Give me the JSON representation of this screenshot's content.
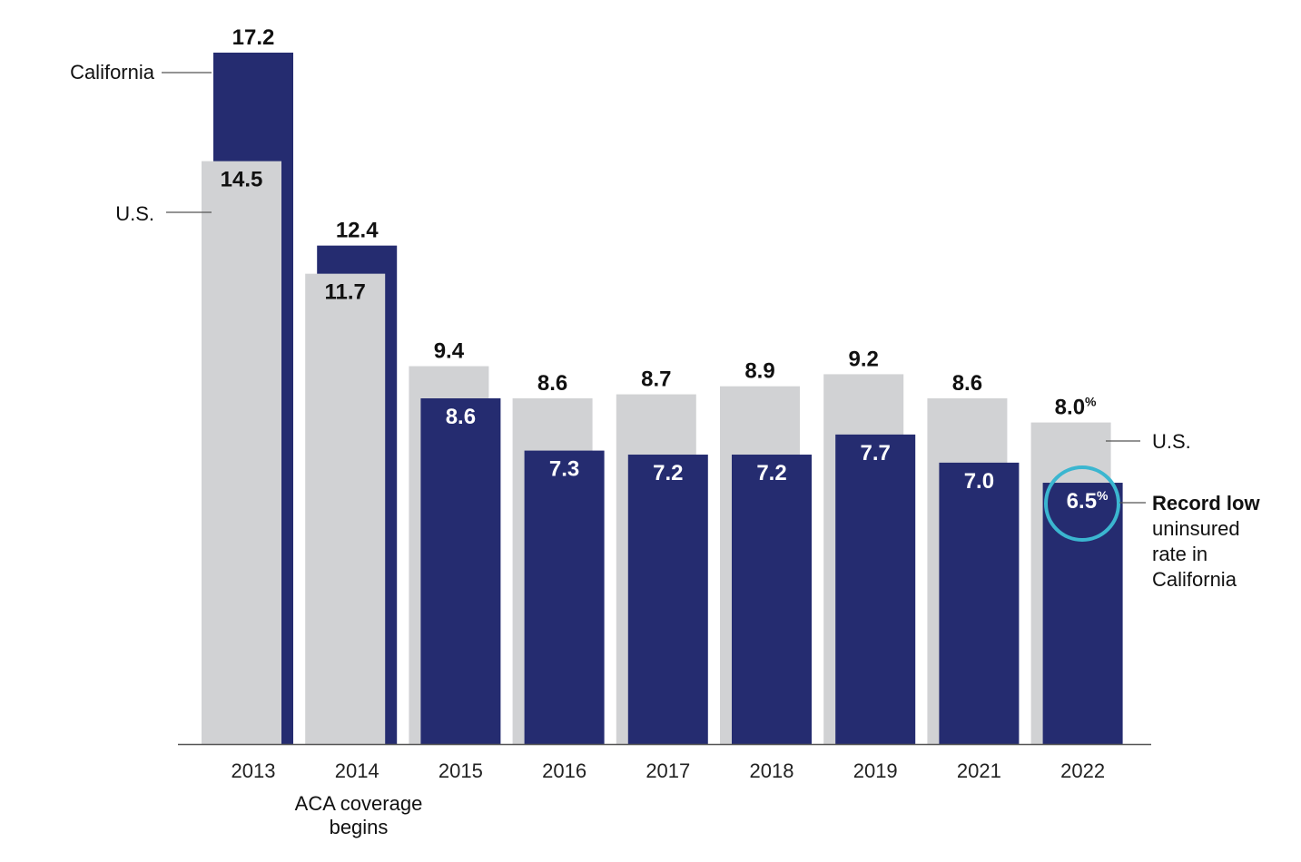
{
  "chart_data": {
    "type": "bar",
    "categories": [
      "2013",
      "2014",
      "2015",
      "2016",
      "2017",
      "2018",
      "2019",
      "2021",
      "2022"
    ],
    "series": [
      {
        "name": "U.S.",
        "values": [
          14.5,
          11.7,
          9.4,
          8.6,
          8.7,
          8.9,
          9.2,
          8.6,
          8.0
        ],
        "color": "#d1d2d4"
      },
      {
        "name": "California",
        "values": [
          17.2,
          12.4,
          8.6,
          7.3,
          7.2,
          7.2,
          7.7,
          7.0,
          6.5
        ],
        "color": "#252c70"
      }
    ],
    "value_labels": {
      "U.S.": [
        "14.5",
        "11.7",
        "9.4",
        "8.6",
        "8.7",
        "8.9",
        "9.2",
        "8.6",
        "8.0"
      ],
      "California": [
        "17.2",
        "12.4",
        "8.6",
        "7.3",
        "7.2",
        "7.2",
        "7.7",
        "7.0",
        "6.5"
      ]
    },
    "percent_suffix": "%",
    "ylim": [
      0,
      17.2
    ],
    "grid": false,
    "legend": "inline labels",
    "annotations": {
      "california_label": "California",
      "us_label_left": "U.S.",
      "us_label_right": "U.S.",
      "aca_note": [
        "ACA coverage",
        "begins"
      ],
      "record_low": {
        "bold": "Record low",
        "lines": [
          "uninsured",
          "rate in",
          "California"
        ]
      },
      "highlight_color": "#3bb6d0"
    }
  }
}
